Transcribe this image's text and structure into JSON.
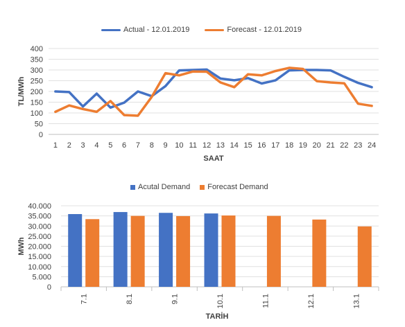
{
  "chart_data": [
    {
      "type": "line",
      "title": "",
      "xlabel": "SAAT",
      "ylabel": "TL/MWh",
      "ylim": [
        0,
        400
      ],
      "yticks": [
        "0",
        "50",
        "100",
        "150",
        "200",
        "250",
        "300",
        "350",
        "400"
      ],
      "grid": true,
      "legend_position": "top",
      "categories": [
        "1",
        "2",
        "3",
        "4",
        "5",
        "6",
        "7",
        "8",
        "9",
        "10",
        "11",
        "12",
        "13",
        "14",
        "15",
        "16",
        "17",
        "18",
        "19",
        "20",
        "21",
        "22",
        "23",
        "24"
      ],
      "series": [
        {
          "name": "Actual - 12.01.2019",
          "color": "#4472C4",
          "values": [
            200,
            197,
            130,
            190,
            125,
            148,
            200,
            178,
            225,
            298,
            300,
            302,
            260,
            252,
            262,
            237,
            252,
            298,
            300,
            300,
            298,
            268,
            240,
            220
          ]
        },
        {
          "name": "Forecast - 12.01.2019",
          "color": "#ED7D31",
          "values": [
            105,
            135,
            118,
            105,
            155,
            90,
            87,
            175,
            285,
            275,
            293,
            292,
            242,
            220,
            280,
            275,
            295,
            310,
            305,
            248,
            242,
            238,
            143,
            133
          ]
        }
      ]
    },
    {
      "type": "bar",
      "title": "",
      "xlabel": "TARİH",
      "ylabel": "MWh",
      "ylim": [
        0,
        40000
      ],
      "yticks": [
        "0",
        "5.000",
        "10.000",
        "15.000",
        "20.000",
        "25.000",
        "30.000",
        "35.000",
        "40.000"
      ],
      "grid": true,
      "legend_position": "top",
      "categories": [
        "7.1",
        "8.1",
        "9.1",
        "10.1",
        "11.1",
        "12.1",
        "13.1"
      ],
      "series": [
        {
          "name": "Acutal Demand",
          "color": "#4472C4",
          "values": [
            35900,
            36900,
            36500,
            36200,
            null,
            null,
            null
          ]
        },
        {
          "name": "Forecast Demand",
          "color": "#ED7D31",
          "values": [
            33400,
            35000,
            34900,
            35200,
            35000,
            33200,
            29800
          ]
        }
      ]
    }
  ]
}
